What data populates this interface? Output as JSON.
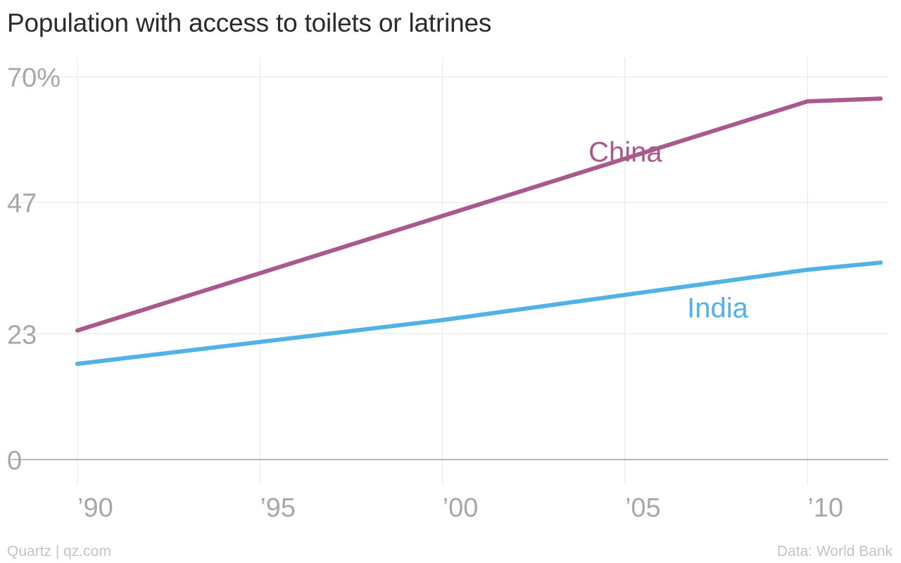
{
  "title": "Population with access to toilets or latrines",
  "footer": {
    "brand": "Quartz | qz.com",
    "source": "Data: World Bank"
  },
  "chart_data": {
    "type": "line",
    "title": "Population with access to toilets or latrines",
    "xlabel": "",
    "ylabel": "",
    "xlim": [
      1990,
      2012
    ],
    "ylim": [
      0,
      70
    ],
    "x_ticks": [
      {
        "value": 1990,
        "label": "’90"
      },
      {
        "value": 1995,
        "label": "’95"
      },
      {
        "value": 2000,
        "label": "’00"
      },
      {
        "value": 2005,
        "label": "’05"
      },
      {
        "value": 2010,
        "label": "’10"
      }
    ],
    "y_ticks": [
      {
        "value": 0,
        "label": "0"
      },
      {
        "value": 23,
        "label": "23"
      },
      {
        "value": 47,
        "label": "47"
      },
      {
        "value": 70,
        "label": "70%"
      }
    ],
    "grid": true,
    "legend": "inline labels",
    "series": [
      {
        "name": "China",
        "color": "#a75a8b",
        "points": [
          [
            1990,
            23.6
          ],
          [
            2010,
            65.5
          ],
          [
            2012,
            66.0
          ]
        ]
      },
      {
        "name": "India",
        "color": "#51b2e5",
        "points": [
          [
            1990,
            17.5
          ],
          [
            2000,
            25.5
          ],
          [
            2010,
            34.7
          ],
          [
            2012,
            36.0
          ]
        ]
      }
    ]
  }
}
